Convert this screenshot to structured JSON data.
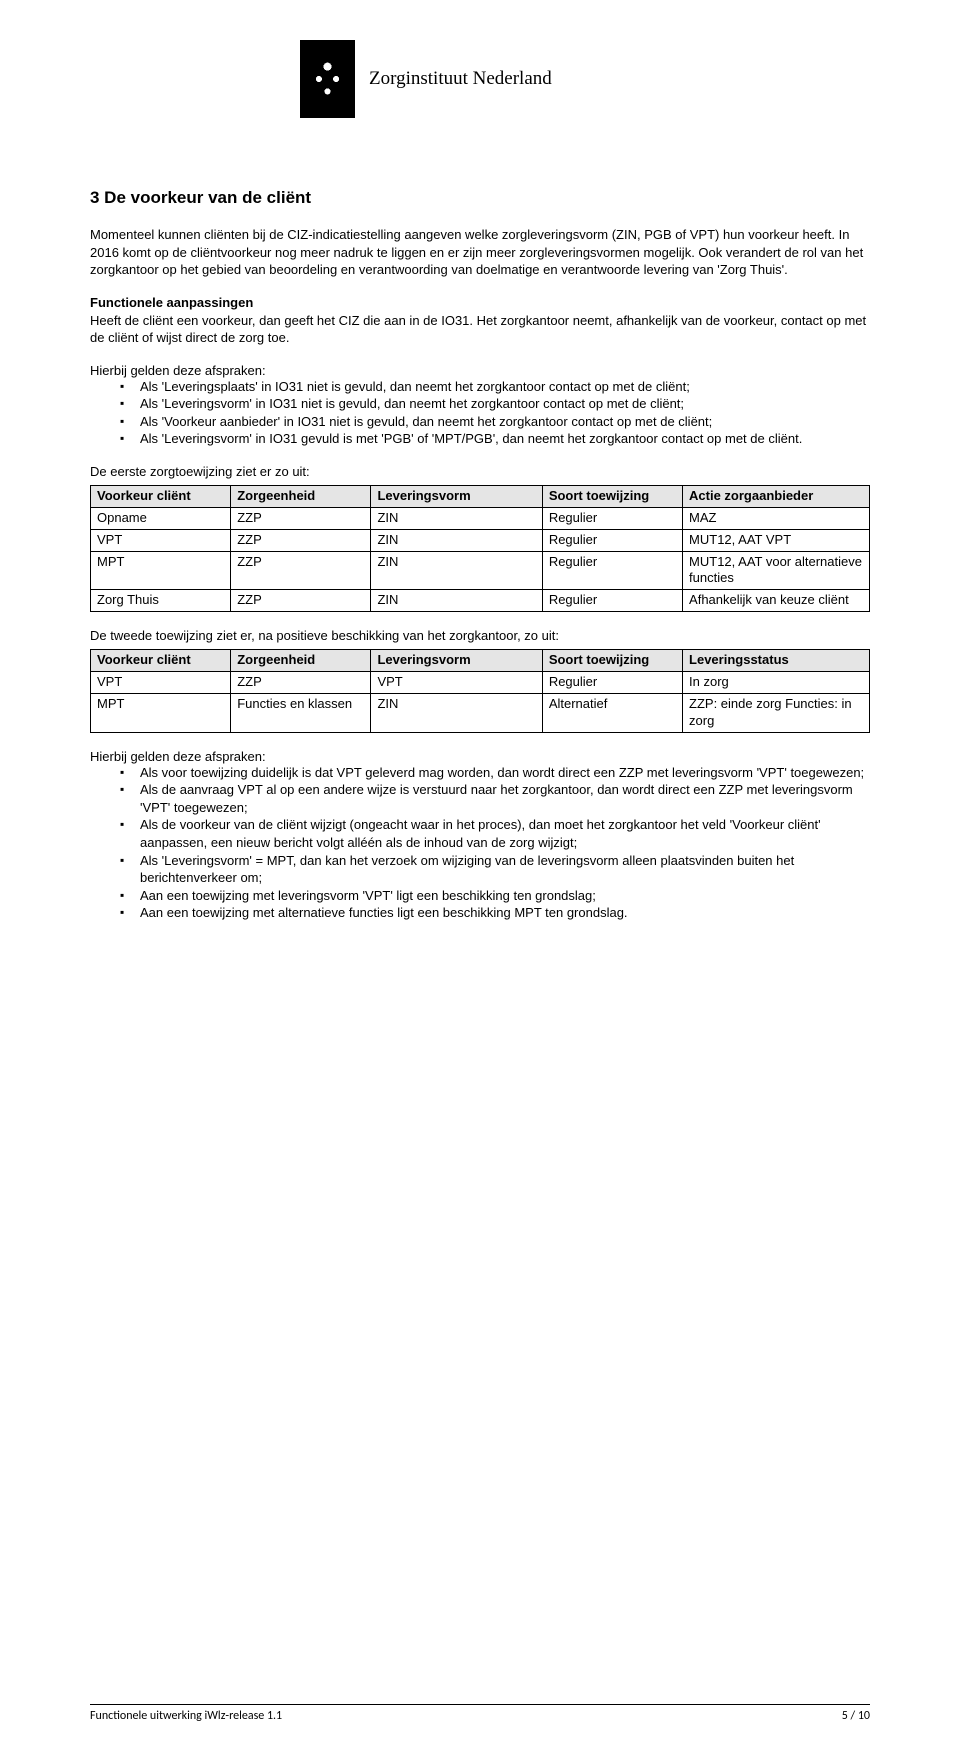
{
  "header": {
    "org_name": "Zorginstituut Nederland"
  },
  "section": {
    "title": "3 De voorkeur van de cliënt",
    "intro_para": "Momenteel kunnen cliënten bij de CIZ-indicatiestelling aangeven welke zorgleveringsvorm (ZIN, PGB of VPT) hun voorkeur heeft. In 2016 komt op de cliëntvoorkeur nog meer nadruk te liggen en er zijn meer zorgleveringsvormen mogelijk. Ook verandert de rol van het zorgkantoor op het gebied van beoordeling en verantwoording van doelmatige en verantwoorde levering van 'Zorg Thuis'.",
    "func_title": "Functionele aanpassingen",
    "func_para": "Heeft de cliënt een voorkeur, dan geeft het CIZ die aan in de IO31. Het zorgkantoor neemt, afhankelijk van de voorkeur, contact op met de cliënt of wijst direct de zorg toe.",
    "afspraken1_intro": "Hierbij gelden deze afspraken:",
    "afspraken1": [
      "Als 'Leveringsplaats' in IO31 niet is gevuld, dan neemt het zorgkantoor contact op met de cliënt;",
      "Als 'Leveringsvorm' in IO31 niet is gevuld, dan neemt het zorgkantoor contact op met de cliënt;",
      "Als 'Voorkeur aanbieder' in IO31 niet is gevuld, dan neemt het zorgkantoor contact op met de cliënt;",
      "Als 'Leveringsvorm' in IO31 gevuld is met 'PGB' of 'MPT/PGB', dan neemt het zorgkantoor contact op met de cliënt."
    ],
    "table1_intro": "De eerste zorgtoewijzing ziet er zo uit:",
    "table2_intro": "De tweede toewijzing ziet er, na positieve beschikking van het zorgkantoor, zo uit:",
    "afspraken2_intro": "Hierbij gelden deze afspraken:",
    "afspraken2": [
      "Als voor toewijzing duidelijk is dat VPT geleverd mag worden, dan wordt direct een ZZP met leveringsvorm 'VPT' toegewezen;",
      "Als de aanvraag VPT al op een andere wijze is verstuurd naar het zorgkantoor, dan wordt direct een ZZP met leveringsvorm 'VPT' toegewezen;",
      "Als de voorkeur van de cliënt wijzigt (ongeacht waar in het proces), dan moet het zorgkantoor het veld 'Voorkeur cliënt' aanpassen, een nieuw bericht volgt alléén als de inhoud van de zorg wijzigt;",
      "Als 'Leveringsvorm' = MPT, dan kan het verzoek om wijziging van de leveringsvorm alleen plaatsvinden buiten het berichtenverkeer om;",
      "Aan een toewijzing met leveringsvorm 'VPT' ligt een beschikking ten grondslag;",
      "Aan een toewijzing met alternatieve functies ligt een beschikking MPT ten grondslag."
    ]
  },
  "table1": {
    "columns": [
      "Voorkeur cliënt",
      "Zorgeenheid",
      "Leveringsvorm",
      "Soort toewijzing",
      "Actie zorgaanbieder"
    ],
    "col_widths": [
      "18%",
      "18%",
      "22%",
      "18%",
      "24%"
    ],
    "rows": [
      [
        "Opname",
        "ZZP",
        "ZIN",
        "Regulier",
        "MAZ"
      ],
      [
        "VPT",
        "ZZP",
        "ZIN",
        "Regulier",
        "MUT12, AAT VPT"
      ],
      [
        "MPT",
        "ZZP",
        "ZIN",
        "Regulier",
        "MUT12, AAT voor alternatieve functies"
      ],
      [
        "Zorg Thuis",
        "ZZP",
        "ZIN",
        "Regulier",
        "Afhankelijk van keuze cliënt"
      ]
    ]
  },
  "table2": {
    "columns": [
      "Voorkeur cliënt",
      "Zorgeenheid",
      "Leveringsvorm",
      "Soort toewijzing",
      "Leveringsstatus"
    ],
    "col_widths": [
      "18%",
      "18%",
      "22%",
      "18%",
      "24%"
    ],
    "rows": [
      [
        "VPT",
        "ZZP",
        "VPT",
        "Regulier",
        "In zorg"
      ],
      [
        "MPT",
        "Functies en klassen",
        "ZIN",
        "Alternatief",
        "ZZP: einde zorg Functies: in zorg"
      ]
    ]
  },
  "footer": {
    "left": "Functionele uitwerking iWlz-release 1.1",
    "right": "5 / 10"
  }
}
